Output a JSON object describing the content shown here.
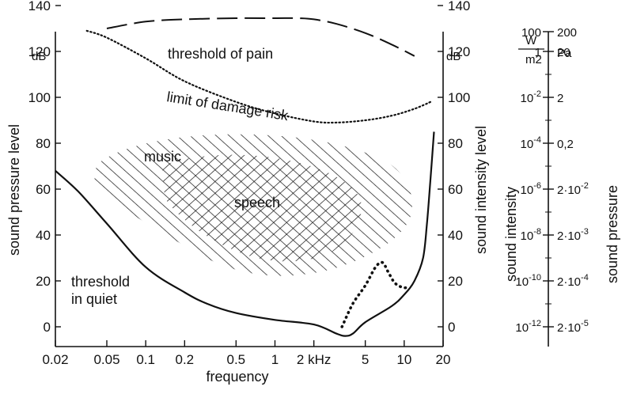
{
  "chart_data": {
    "type": "line",
    "xlabel": "frequency",
    "ylabel": "sound pressure level",
    "y2label": "sound intensity level",
    "x_scale": "log",
    "xlim": [
      0.02,
      20
    ],
    "ylim": [
      -5,
      140
    ],
    "x_ticks": [
      {
        "value": 0.02,
        "label": "0.02"
      },
      {
        "value": 0.05,
        "label": "0.05"
      },
      {
        "value": 0.1,
        "label": "0.1"
      },
      {
        "value": 0.2,
        "label": "0.2"
      },
      {
        "value": 0.5,
        "label": "0.5"
      },
      {
        "value": 1,
        "label": "1"
      },
      {
        "value": 2,
        "label": "2 kHz"
      },
      {
        "value": 5,
        "label": "5"
      },
      {
        "value": 10,
        "label": "10"
      },
      {
        "value": 20,
        "label": "20"
      }
    ],
    "y_ticks": [
      0,
      20,
      40,
      60,
      80,
      100,
      120,
      140
    ],
    "y_unit": "dB",
    "grid": false,
    "series": [
      {
        "name": "threshold of pain",
        "style": "dashed",
        "x": [
          0.05,
          0.1,
          0.2,
          0.5,
          1,
          1.5,
          2,
          3,
          5,
          8,
          12
        ],
        "y": [
          130,
          133,
          134,
          134.5,
          134.5,
          134.5,
          134,
          132,
          128,
          123,
          118
        ]
      },
      {
        "name": "limit of damage risk",
        "style": "dotted",
        "x": [
          0.035,
          0.05,
          0.1,
          0.2,
          0.5,
          1,
          2,
          3,
          5,
          8,
          12,
          16
        ],
        "y": [
          129,
          126,
          117,
          107,
          98,
          93,
          89.5,
          89,
          90,
          92,
          95,
          98
        ]
      },
      {
        "name": "threshold in quiet",
        "style": "solid",
        "x": [
          0.02,
          0.03,
          0.05,
          0.1,
          0.2,
          0.3,
          0.5,
          1,
          2,
          3,
          3.5,
          4,
          5,
          8,
          10,
          12,
          14,
          15,
          16,
          17
        ],
        "y": [
          68,
          59,
          45,
          26,
          15,
          10,
          6,
          3,
          1,
          -3,
          -4,
          -3,
          2,
          9,
          14,
          20,
          30,
          45,
          65,
          85
        ]
      },
      {
        "name": "",
        "style": "dotted-heavy",
        "x": [
          3.3,
          4,
          5,
          6,
          6.8,
          7.5,
          8.5,
          10,
          11
        ],
        "y": [
          0,
          10,
          18,
          26,
          28,
          24,
          19,
          17,
          18
        ]
      }
    ],
    "regions": [
      {
        "name": "music",
        "hatch": "single"
      },
      {
        "name": "speech",
        "hatch": "cross"
      }
    ],
    "annotations": [
      {
        "text": "threshold of pain"
      },
      {
        "text": "limit of damage risk"
      },
      {
        "text": "music"
      },
      {
        "text": "speech"
      },
      {
        "text": "threshold"
      },
      {
        "text": "in quiet"
      }
    ]
  },
  "side_scales": {
    "intensity": {
      "title": "sound intensity",
      "unit_num": "W",
      "unit_den": "m2",
      "labels": [
        "100",
        "1",
        "10-2",
        "10-4",
        "10-6",
        "10-8",
        "10-10",
        "10-12"
      ]
    },
    "pressure": {
      "title": "sound pressure",
      "unit": "Pa",
      "labels": [
        "200",
        "20",
        "2",
        "0,2",
        "2·10-2",
        "2·10-3",
        "2·10-4",
        "2·10-5"
      ]
    }
  }
}
